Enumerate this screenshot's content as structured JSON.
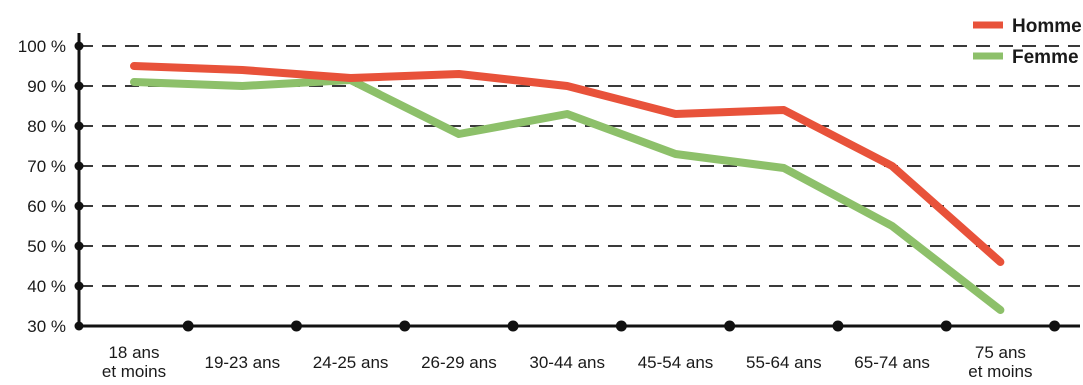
{
  "chart_data": {
    "type": "line",
    "title": "",
    "xlabel": "",
    "ylabel": "",
    "categories": [
      [
        "18 ans",
        "et moins"
      ],
      [
        "19-23 ans"
      ],
      [
        "24-25 ans"
      ],
      [
        "26-29 ans"
      ],
      [
        "30-44 ans"
      ],
      [
        "45-54 ans"
      ],
      [
        "55-64 ans"
      ],
      [
        "65-74 ans"
      ],
      [
        "75 ans",
        "et moins"
      ]
    ],
    "ylim": [
      30,
      100
    ],
    "yticks": [
      100,
      90,
      80,
      70,
      60,
      50,
      40,
      30
    ],
    "ytick_labels": [
      "100 %",
      "90 %",
      "80 %",
      "70 %",
      "60 %",
      "50 %",
      "40 %",
      "30 %"
    ],
    "grid": "dashed-horizontal",
    "legend_position": "top-right",
    "series": [
      {
        "name": "Homme",
        "color": "#e8523a",
        "values": [
          95,
          94,
          92,
          93,
          90,
          83,
          84,
          70,
          46
        ]
      },
      {
        "name": "Femme",
        "color": "#8dc06a",
        "values": [
          91,
          90,
          91.5,
          78,
          83,
          73,
          69.5,
          55,
          34
        ]
      }
    ]
  }
}
